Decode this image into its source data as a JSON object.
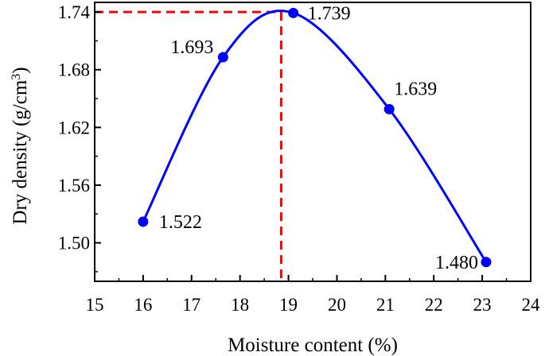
{
  "chart_data": {
    "type": "line",
    "title": "",
    "xlabel": "Moisture content (%)",
    "ylabel_main": "Dry density (g/cm",
    "ylabel_sup": "3",
    "ylabel_close": ")",
    "xlim": [
      15,
      24
    ],
    "ylim": [
      1.46,
      1.75
    ],
    "x_ticks": [
      15,
      16,
      17,
      18,
      19,
      20,
      21,
      22,
      23,
      24
    ],
    "x_tick_labels": [
      "15",
      "16",
      "17",
      "18",
      "19",
      "20",
      "21",
      "22",
      "23",
      "24"
    ],
    "y_ticks": [
      1.5,
      1.56,
      1.62,
      1.68,
      1.74
    ],
    "y_tick_labels": [
      "1.50",
      "1.56",
      "1.62",
      "1.68",
      "1.74"
    ],
    "grid": false,
    "legend": "none",
    "series": [
      {
        "x": [
          16.0,
          17.65,
          19.1,
          21.08,
          23.08
        ],
        "y": [
          1.522,
          1.693,
          1.739,
          1.639,
          1.48
        ],
        "labels": [
          "1.522",
          "1.693",
          "1.739",
          "1.639",
          "1.480"
        ],
        "color": "#0000ff",
        "smooth": true
      }
    ],
    "annotations": {
      "optimum_moisture": 18.85,
      "max_dry_density": 1.74,
      "guide_color": "#ff0000",
      "guide_style": "dashed"
    }
  }
}
